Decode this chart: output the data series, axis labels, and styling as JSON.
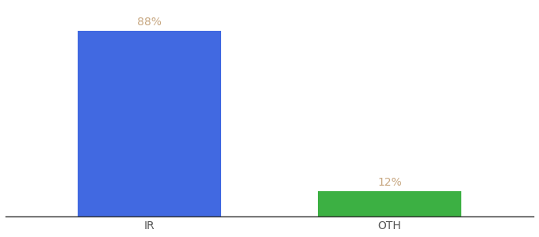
{
  "categories": [
    "IR",
    "OTH"
  ],
  "values": [
    88,
    12
  ],
  "bar_colors": [
    "#4169E1",
    "#3CB043"
  ],
  "label_color": "#c8a882",
  "value_labels": [
    "88%",
    "12%"
  ],
  "ylim": [
    0,
    100
  ],
  "background_color": "#ffffff",
  "label_fontsize": 10,
  "tick_fontsize": 10,
  "bar_width": 0.6,
  "x_positions": [
    0,
    1
  ],
  "xlim": [
    -0.6,
    1.6
  ]
}
